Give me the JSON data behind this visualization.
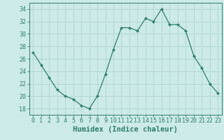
{
  "x": [
    0,
    1,
    2,
    3,
    4,
    5,
    6,
    7,
    8,
    9,
    10,
    11,
    12,
    13,
    14,
    15,
    16,
    17,
    18,
    19,
    20,
    21,
    22,
    23
  ],
  "y": [
    27,
    25,
    23,
    21,
    20,
    19.5,
    18.5,
    18,
    20,
    23.5,
    27.5,
    31,
    31,
    30.5,
    32.5,
    32,
    34,
    31.5,
    31.5,
    30.5,
    26.5,
    24.5,
    22,
    20.5
  ],
  "line_color": "#2e7d6e",
  "marker": "D",
  "marker_size": 2.0,
  "bg_color": "#cceae7",
  "grid_color": "#aed4d0",
  "xlabel": "Humidex (Indice chaleur)",
  "ylim": [
    17,
    35
  ],
  "yticks": [
    18,
    20,
    22,
    24,
    26,
    28,
    30,
    32,
    34
  ],
  "xticks": [
    0,
    1,
    2,
    3,
    4,
    5,
    6,
    7,
    8,
    9,
    10,
    11,
    12,
    13,
    14,
    15,
    16,
    17,
    18,
    19,
    20,
    21,
    22,
    23
  ],
  "tick_label_fontsize": 6.0,
  "xlabel_fontsize": 7.5,
  "axis_color": "#2e7d6e",
  "tick_color": "#2e7d6e"
}
